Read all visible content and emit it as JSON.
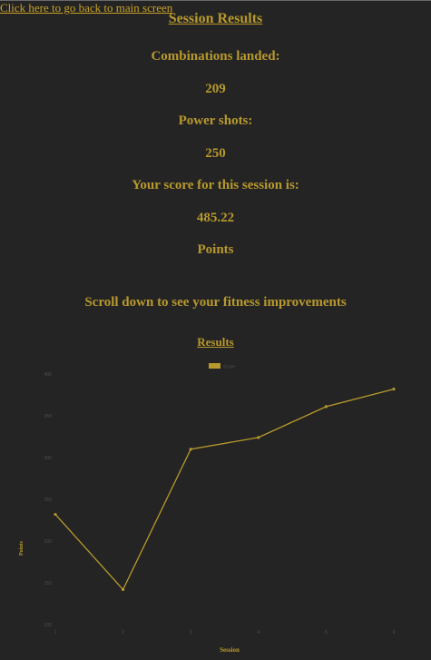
{
  "nav": {
    "back_link": "Click here to go back to main screen"
  },
  "header": {
    "title": "Session Results"
  },
  "stats": {
    "combinations_label": "Combinations landed:",
    "combinations_value": "209",
    "power_label": "Power shots:",
    "power_value": "250",
    "score_label": "Your score for this session is:",
    "score_value": "485.22",
    "points_label": "Points"
  },
  "scroll_hint": "Scroll down to see your fitness improvements",
  "results_heading": "Results",
  "colors": {
    "accent": "#b8992c",
    "background": "#242424",
    "axis_text": "#4e4e4e"
  },
  "chart_data": {
    "type": "line",
    "title": "",
    "xlabel": "Session",
    "ylabel": "Points",
    "categories": [
      "1",
      "2",
      "3",
      "4",
      "5",
      "6"
    ],
    "yticks": [
      "100",
      "150",
      "200",
      "250",
      "300",
      "350",
      "400"
    ],
    "ylim": [
      100,
      400
    ],
    "series": [
      {
        "name": "Score",
        "values": [
          232,
          142,
          310,
          324,
          361,
          382
        ]
      }
    ],
    "legend": "top-center",
    "grid": false
  }
}
